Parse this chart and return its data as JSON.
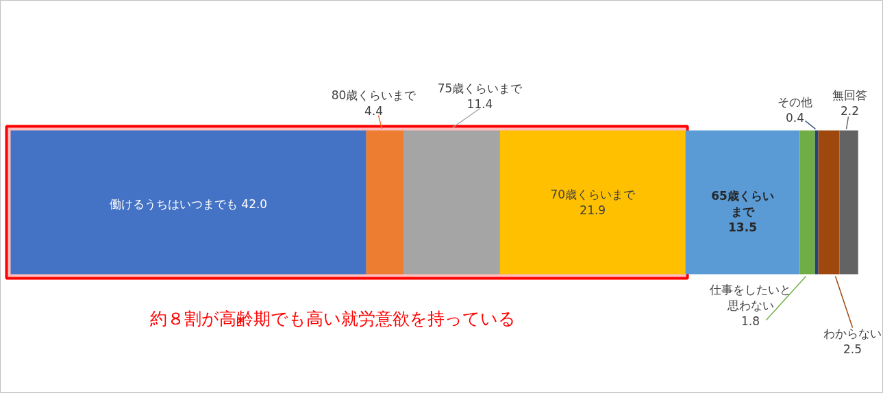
{
  "chart_data": {
    "type": "bar",
    "stacked": true,
    "orientation": "horizontal",
    "categories": [
      null
    ],
    "xlim": [
      0,
      100
    ],
    "tick_labels": false,
    "grid": false,
    "series": [
      {
        "name": "働けるうちはいつまでも",
        "color": "#4472c4",
        "values": [
          42.0
        ],
        "value_labels": [
          "42.0"
        ]
      },
      {
        "name": "80歳くらいまで",
        "color": "#ed7d31",
        "values": [
          4.4
        ],
        "value_labels": [
          "4.4"
        ]
      },
      {
        "name": "75歳くらいまで",
        "color": "#a5a5a5",
        "values": [
          11.4
        ],
        "value_labels": [
          "11.4"
        ]
      },
      {
        "name": "70歳くらいまで",
        "color": "#ffc000",
        "values": [
          21.9
        ],
        "value_labels": [
          "21.9"
        ]
      },
      {
        "name": "65歳くらいまで",
        "color": "#5b9bd5",
        "values": [
          13.5
        ],
        "value_labels": [
          "13.5"
        ]
      },
      {
        "name": "仕事をしたいと思わない",
        "color": "#70ad47",
        "values": [
          1.8
        ],
        "value_labels": [
          "1.8"
        ]
      },
      {
        "name": "その他",
        "color": "#264478",
        "values": [
          0.4
        ],
        "value_labels": [
          "0.4"
        ]
      },
      {
        "name": "わからない",
        "color": "#9e480e",
        "values": [
          2.5
        ],
        "value_labels": [
          "2.5"
        ]
      },
      {
        "name": "無回答",
        "color": "#636363",
        "values": [
          2.2
        ],
        "value_labels": [
          "2.2"
        ]
      }
    ],
    "bands": [
      {
        "axis": "x",
        "from": 0,
        "to": 79.7,
        "color": "#ff0000"
      }
    ],
    "annotations": [
      "約８割が高齢期でも高い就労意欲を持っている"
    ]
  }
}
